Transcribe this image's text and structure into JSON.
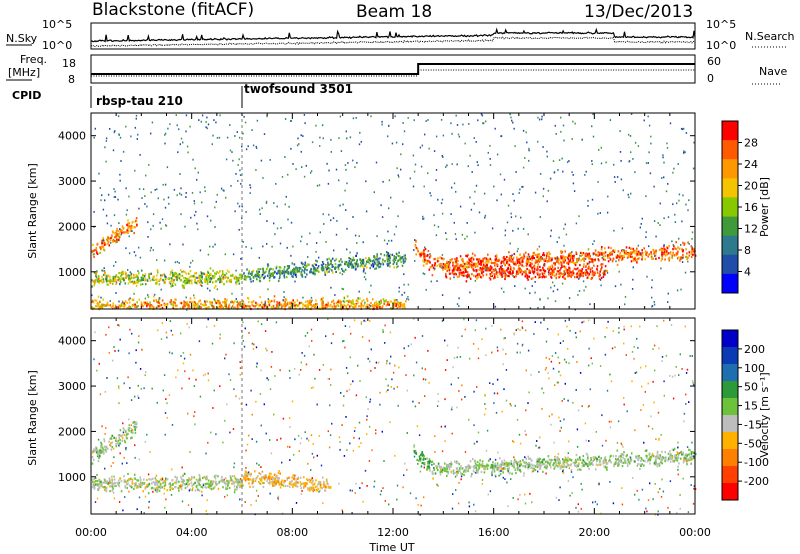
{
  "header": {
    "title": "Blackstone (fitACF)",
    "beam": "Beam 18",
    "date": "13/Dec/2013"
  },
  "strips": {
    "nsky_label": "N.Sky",
    "nsky_ticks": [
      "10^5",
      "10^0"
    ],
    "nsearch_label": "N.Search",
    "nsearch_ticks": [
      "10^5",
      "10^0"
    ],
    "freq_label": "Freq.",
    "freq_unit": "[MHz]",
    "freq_ticks": [
      "18",
      "8"
    ],
    "nave_label": "Nave",
    "nave_ticks": [
      "60",
      "0"
    ],
    "cpid_label": "CPID",
    "cpid_segments": [
      {
        "name": "rbsp-tau 210",
        "start_hour": 0,
        "end_hour": 6
      },
      {
        "name": "twofsound 3501",
        "start_hour": 6,
        "end_hour": 24
      }
    ]
  },
  "x_axis": {
    "title": "Time UT",
    "tick_labels": [
      "00:00",
      "04:00",
      "08:00",
      "12:00",
      "16:00",
      "20:00",
      "00:00"
    ]
  },
  "panels": [
    {
      "y_title": "Slant Range [km]",
      "y_ticks": [
        "4000",
        "3000",
        "2000",
        "1000"
      ],
      "colorbar": {
        "title": "Power [dB]",
        "ticks": [
          "28",
          "24",
          "20",
          "16",
          "12",
          "8",
          "4"
        ],
        "colors": [
          "#ff0000",
          "#ff5a00",
          "#ff9800",
          "#f4c400",
          "#88c800",
          "#3f9a3c",
          "#2c7a8c",
          "#1f4da8",
          "#0000ff"
        ]
      }
    },
    {
      "y_title": "Slant Range [km]",
      "y_ticks": [
        "4000",
        "3000",
        "2000",
        "1000"
      ],
      "colorbar": {
        "title": "Velocity [m s⁻¹]",
        "ticks": [
          "200",
          "100",
          "50",
          "15",
          "-15",
          "-50",
          "-100",
          "-200"
        ],
        "colors": [
          "#0000c8",
          "#0a3ab4",
          "#1f6fb0",
          "#2d9a3a",
          "#6cc23a",
          "#bdbdbd",
          "#ffb100",
          "#ff8000",
          "#ff4000",
          "#ff0000"
        ]
      }
    }
  ],
  "chart_data": [
    {
      "type": "heatmap",
      "title": "Blackstone (fitACF) Beam 18 13/Dec/2013",
      "xlabel": "Time UT",
      "ylabel": "Slant Range [km]",
      "colorbar_label": "Power [dB]",
      "x_range_hours": [
        0,
        24
      ],
      "y_range_km": [
        180,
        4500
      ],
      "color_range": [
        0,
        30
      ],
      "echo_bands": [
        {
          "start_hour": 0.0,
          "end_hour": 1.8,
          "range_km_start": 1450,
          "range_km_end": 2100,
          "power_db": 24
        },
        {
          "start_hour": 0.0,
          "end_hour": 6.0,
          "range_km_start": 850,
          "range_km_end": 850,
          "power_db": 16
        },
        {
          "start_hour": 0.0,
          "end_hour": 12.5,
          "range_km_start": 250,
          "range_km_end": 250,
          "power_db": 22
        },
        {
          "start_hour": 6.0,
          "end_hour": 12.5,
          "range_km_start": 900,
          "range_km_end": 1300,
          "power_db": 10
        },
        {
          "start_hour": 12.8,
          "end_hour": 13.5,
          "range_km_start": 1550,
          "range_km_end": 1200,
          "power_db": 26
        },
        {
          "start_hour": 13.5,
          "end_hour": 24.0,
          "range_km_start": 1150,
          "range_km_end": 1450,
          "power_db": 26
        },
        {
          "start_hour": 14.0,
          "end_hour": 20.5,
          "range_km_start": 1000,
          "range_km_end": 1000,
          "power_db": 28
        }
      ]
    },
    {
      "type": "heatmap",
      "title": "Blackstone (fitACF) Beam 18 13/Dec/2013",
      "xlabel": "Time UT",
      "ylabel": "Slant Range [km]",
      "colorbar_label": "Velocity [m s⁻¹]",
      "x_range_hours": [
        0,
        24
      ],
      "y_range_km": [
        180,
        4500
      ],
      "color_range": [
        -200,
        200
      ],
      "echo_bands": [
        {
          "start_hour": 0.0,
          "end_hour": 1.8,
          "range_km_start": 1450,
          "range_km_end": 2100,
          "velocity_ms": 0
        },
        {
          "start_hour": 0.0,
          "end_hour": 6.0,
          "range_km_start": 850,
          "range_km_end": 850,
          "velocity_ms": -10
        },
        {
          "start_hour": 6.0,
          "end_hour": 9.5,
          "range_km_start": 1000,
          "range_km_end": 800,
          "velocity_ms": -60
        },
        {
          "start_hour": 12.8,
          "end_hour": 13.5,
          "range_km_start": 1550,
          "range_km_end": 1200,
          "velocity_ms": 40
        },
        {
          "start_hour": 13.5,
          "end_hour": 24.0,
          "range_km_start": 1150,
          "range_km_end": 1450,
          "velocity_ms": 0
        }
      ]
    }
  ]
}
